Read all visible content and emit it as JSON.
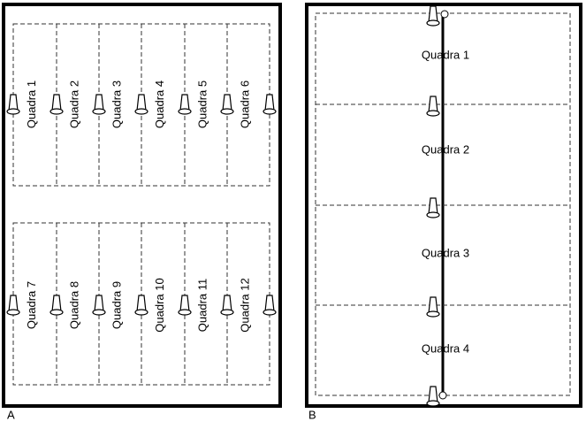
{
  "panels": [
    {
      "label": "A",
      "courts": [
        "Quadra 1",
        "Quadra 2",
        "Quadra 3",
        "Quadra 4",
        "Quadra 5",
        "Quadra 6",
        "Quadra 7",
        "Quadra 8",
        "Quadra 9",
        "Quadra 10",
        "Quadra 11",
        "Quadra 12"
      ]
    },
    {
      "label": "B",
      "courts": [
        "Quadra 1",
        "Quadra 2",
        "Quadra 3",
        "Quadra 4"
      ]
    }
  ]
}
